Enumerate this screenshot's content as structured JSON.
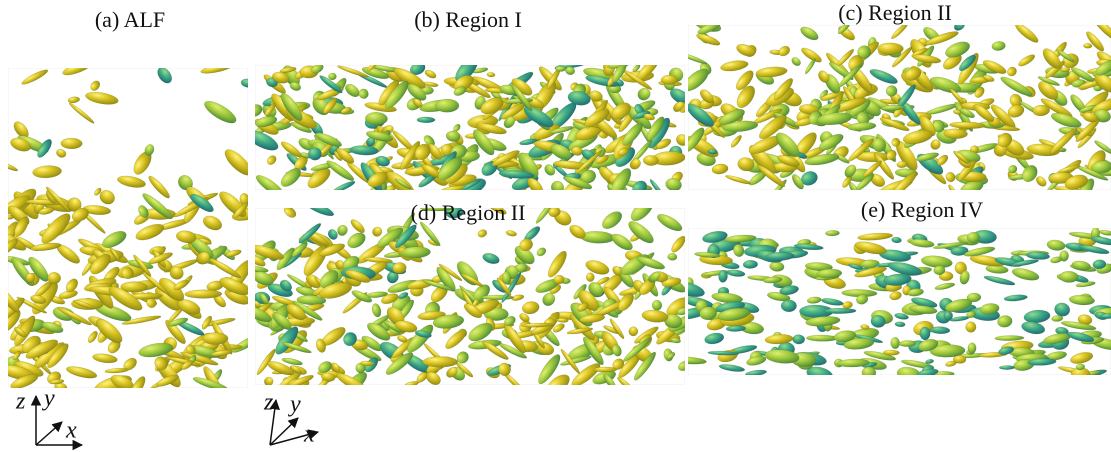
{
  "panels": [
    {
      "label": "(a) ALF"
    },
    {
      "label": "(b) Region I"
    },
    {
      "label": "(c) Region II"
    },
    {
      "label": "(d) Region II"
    },
    {
      "label": "(e) Region IV"
    }
  ],
  "axes": [
    {
      "z": "z",
      "y": "y",
      "x": "x"
    },
    {
      "z": "z",
      "y": "y",
      "x": "x"
    }
  ]
}
